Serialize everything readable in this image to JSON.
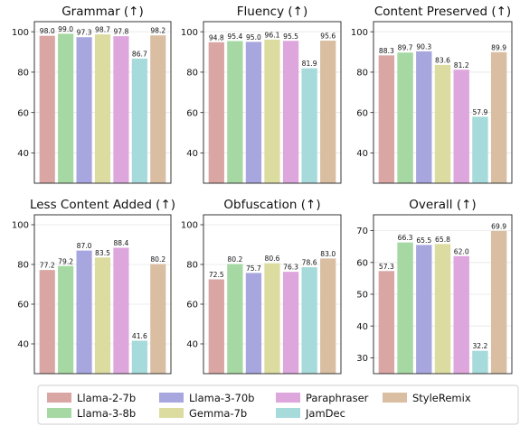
{
  "chart_data": {
    "type": "bar",
    "layout": "2x3 grid of bar charts",
    "grid": "horizontal gridlines",
    "legend_placement": "bottom",
    "series_order": [
      "Llama-2-7b",
      "Llama-3-8b",
      "Llama-3-70b",
      "Gemma-7b",
      "Paraphraser",
      "JamDec",
      "StyleRemix"
    ],
    "colors": {
      "Llama-2-7b": "#d9a6a4",
      "Llama-3-8b": "#a5d8a2",
      "Llama-3-70b": "#a7a6de",
      "Gemma-7b": "#dcdca1",
      "Paraphraser": "#dda6dd",
      "JamDec": "#a6dadb",
      "StyleRemix": "#d9bea2"
    },
    "charts": [
      {
        "title": "Grammar (↑)",
        "ylim": [
          25,
          105
        ],
        "yticks": [
          40,
          60,
          80,
          100
        ],
        "values": [
          98.0,
          99.0,
          97.3,
          98.7,
          97.8,
          86.7,
          98.2
        ],
        "labels": [
          "98.0",
          "99.0",
          "97.3",
          "98.7",
          "97.8",
          "86.7",
          "98.2"
        ]
      },
      {
        "title": "Fluency (↑)",
        "ylim": [
          25,
          105
        ],
        "yticks": [
          40,
          60,
          80,
          100
        ],
        "values": [
          94.8,
          95.4,
          95.0,
          96.1,
          95.5,
          81.9,
          95.6
        ],
        "labels": [
          "94.8",
          "95.4",
          "95.0",
          "96.1",
          "95.5",
          "81.9",
          "95.6"
        ]
      },
      {
        "title": "Content Preserved (↑)",
        "ylim": [
          25,
          105
        ],
        "yticks": [
          40,
          60,
          80,
          100
        ],
        "values": [
          88.3,
          89.7,
          90.3,
          83.6,
          81.2,
          57.9,
          89.9
        ],
        "labels": [
          "88.3",
          "89.7",
          "90.3",
          "83.6",
          "81.2",
          "57.9",
          "89.9"
        ]
      },
      {
        "title": "Less Content Added (↑)",
        "ylim": [
          25,
          105
        ],
        "yticks": [
          40,
          60,
          80,
          100
        ],
        "values": [
          77.2,
          79.2,
          87.0,
          83.5,
          88.4,
          41.6,
          80.2
        ],
        "labels": [
          "77.2",
          "79.2",
          "87.0",
          "83.5",
          "88.4",
          "41.6",
          "80.2"
        ]
      },
      {
        "title": "Obfuscation (↑)",
        "ylim": [
          25,
          105
        ],
        "yticks": [
          40,
          60,
          80,
          100
        ],
        "values": [
          72.5,
          80.2,
          75.7,
          80.6,
          76.3,
          78.6,
          83.0
        ],
        "labels": [
          "72.5",
          "80.2",
          "75.7",
          "80.6",
          "76.3",
          "78.6",
          "83.0"
        ]
      },
      {
        "title": "Overall (↑)",
        "ylim": [
          25,
          75
        ],
        "yticks": [
          30,
          40,
          50,
          60,
          70
        ],
        "values": [
          57.3,
          66.3,
          65.5,
          65.8,
          62.0,
          32.2,
          69.9
        ],
        "labels": [
          "57.3",
          "66.3",
          "65.5",
          "65.8",
          "62.0",
          "32.2",
          "69.9"
        ]
      }
    ],
    "legend": [
      {
        "name": "Llama-2-7b"
      },
      {
        "name": "Llama-3-70b"
      },
      {
        "name": "Paraphraser"
      },
      {
        "name": "StyleRemix"
      },
      {
        "name": "Llama-3-8b"
      },
      {
        "name": "Gemma-7b"
      },
      {
        "name": "JamDec"
      }
    ]
  }
}
